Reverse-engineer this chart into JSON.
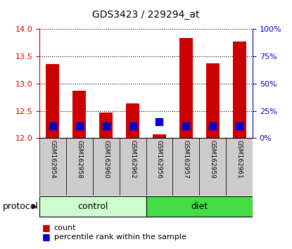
{
  "title": "GDS3423 / 229294_at",
  "samples": [
    "GSM162954",
    "GSM162958",
    "GSM162960",
    "GSM162962",
    "GSM162956",
    "GSM162957",
    "GSM162959",
    "GSM162961"
  ],
  "red_tops": [
    13.35,
    12.87,
    12.47,
    12.63,
    12.07,
    13.83,
    13.37,
    13.77
  ],
  "blue_vals": [
    12.22,
    12.22,
    12.22,
    12.22,
    12.3,
    12.22,
    12.22,
    12.22
  ],
  "bar_bottom": 12.0,
  "ylim": [
    12.0,
    14.0
  ],
  "yticks_left": [
    12.0,
    12.5,
    13.0,
    13.5,
    14.0
  ],
  "yticks_right_pct": [
    0,
    25,
    50,
    75,
    100
  ],
  "groups": [
    {
      "label": "control",
      "start": 0,
      "end": 4,
      "color": "#ccffcc"
    },
    {
      "label": "diet",
      "start": 4,
      "end": 8,
      "color": "#44dd44"
    }
  ],
  "protocol_label": "protocol",
  "bar_color": "#cc0000",
  "blue_color": "#0000cc",
  "bar_width": 0.5,
  "blue_marker_size": 50,
  "left_tick_color": "#cc0000",
  "right_tick_color": "#0000cc",
  "bg_color": "#ffffff",
  "panel_bg": "#cccccc",
  "tick_fontsize": 8,
  "label_fontsize": 6.5,
  "title_fontsize": 10,
  "group_fontsize": 9,
  "legend_fontsize": 8
}
